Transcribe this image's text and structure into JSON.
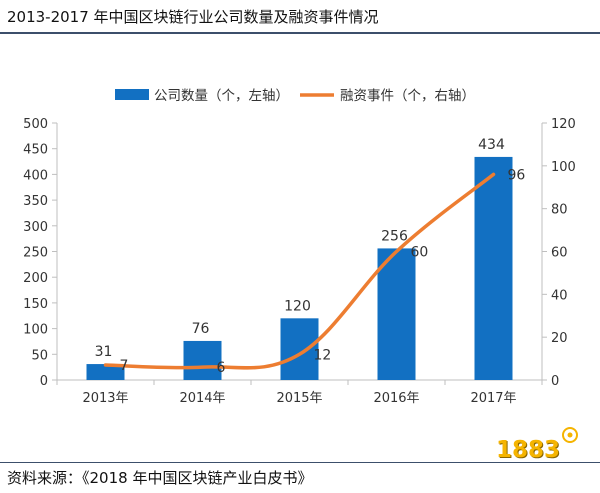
{
  "header": {
    "title": "2013-2017 年中国区块链行业公司数量及融资事件情况"
  },
  "footer": {
    "source": "资料来源：《2018 年中国区块链产业白皮书》"
  },
  "watermark": {
    "text": "1883"
  },
  "colors": {
    "bar": "#1270c2",
    "line": "#ed7d31",
    "axis": "#bfbfbf",
    "rule": "#3c4f6b"
  },
  "chart_data": {
    "type": "bar",
    "categories": [
      "2013年",
      "2014年",
      "2015年",
      "2016年",
      "2017年"
    ],
    "series": [
      {
        "name": "公司数量（个，左轴）",
        "type": "bar",
        "axis": "left",
        "values": [
          31,
          76,
          120,
          256,
          434
        ]
      },
      {
        "name": "融资事件（个，右轴）",
        "type": "line",
        "axis": "right",
        "values": [
          7,
          6,
          12,
          60,
          96
        ]
      }
    ],
    "y_left": {
      "min": 0,
      "max": 500,
      "ticks": [
        0,
        50,
        100,
        150,
        200,
        250,
        300,
        350,
        400,
        450,
        500
      ]
    },
    "y_right": {
      "min": 0,
      "max": 120,
      "ticks": [
        0,
        20,
        40,
        60,
        80,
        100,
        120
      ]
    },
    "legend_position": "top-center",
    "grid": false,
    "data_labels": true
  }
}
